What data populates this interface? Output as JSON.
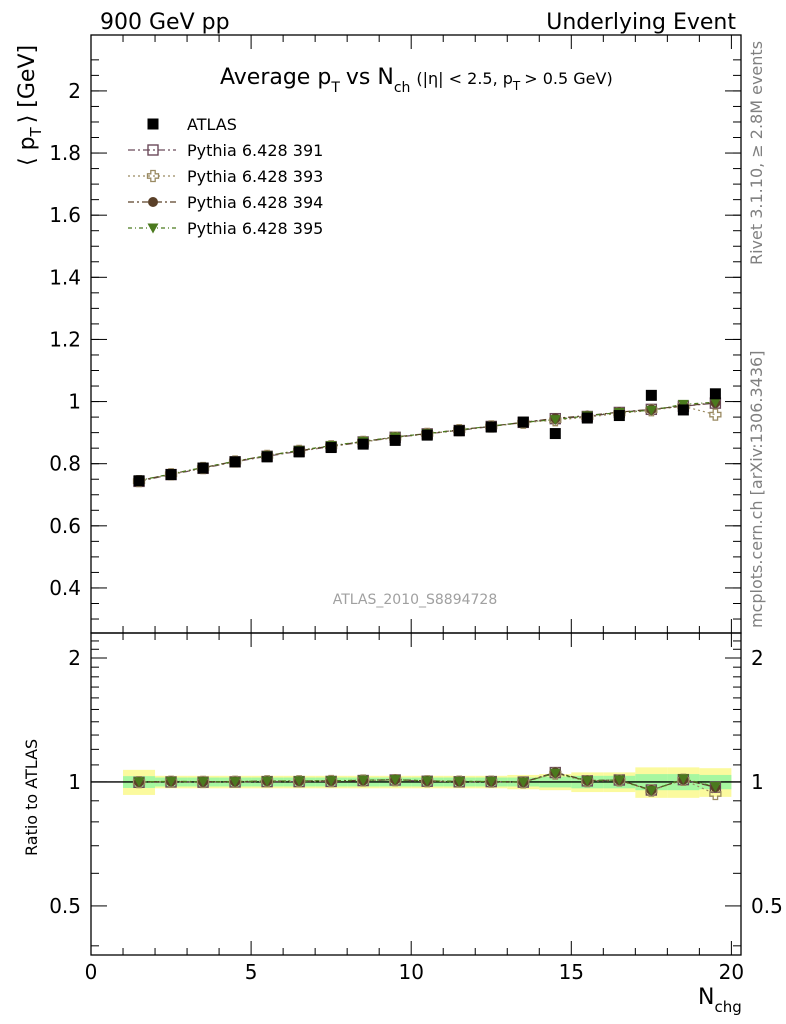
{
  "header": {
    "left": "900 GeV pp",
    "right": "Underlying Event"
  },
  "title": {
    "main": "Average p",
    "main_sub": "T",
    "vs": "vs N",
    "vs_sub": "ch",
    "cuts_a": "(|η| < 2.5, p",
    "cuts_sub": "T",
    "cuts_b": "> 0.5 GeV)"
  },
  "ylabel": {
    "open": "⟨ p",
    "sub": "T",
    "close": "⟩ [GeV]"
  },
  "ratio_ylabel": "Ratio to ATLAS",
  "xlabel": {
    "main": "N",
    "sub": "chg"
  },
  "side_text": {
    "rivet": "Rivet 3.1.10, ≥ 2.8M events",
    "mcplots": "mcplots.cern.ch [arXiv:1306.3436]"
  },
  "watermark": "ATLAS_2010_S8894728",
  "colors": {
    "atlas": "#000000",
    "p391": "#6b4a5a",
    "p393": "#9a8a62",
    "p394": "#5a4028",
    "p395": "#4b7a1e",
    "band_inner": "#a6f7a0",
    "band_outer": "#fbfa9e"
  },
  "chart_data": [
    {
      "type": "scatter",
      "panel": "main",
      "ylabel": "⟨ pT ⟩ [GeV]",
      "xlim": [
        0,
        20.3
      ],
      "ylim": [
        0.255,
        2.18
      ],
      "x_ticks": [
        "0",
        "5",
        "10",
        "15",
        "20"
      ],
      "y_ticks": [
        "0.4",
        "0.6",
        "0.8",
        "1",
        "1.2",
        "1.4",
        "1.6",
        "1.8",
        "2"
      ],
      "legend_position": "top-left",
      "x": [
        1.5,
        2.5,
        3.5,
        4.5,
        5.5,
        6.5,
        7.5,
        8.5,
        9.5,
        10.5,
        11.5,
        12.5,
        13.5,
        14.5,
        15.5,
        16.5,
        17.5,
        18.5,
        19.5
      ],
      "series": [
        {
          "name": "ATLAS",
          "values": [
            0.745,
            0.765,
            0.786,
            0.806,
            0.822,
            0.838,
            0.852,
            0.863,
            0.875,
            0.892,
            0.906,
            0.918,
            0.934,
            0.897,
            0.947,
            0.955,
            1.02,
            0.973,
            1.025
          ]
        },
        {
          "name": "Pythia 6.428 391",
          "values": [
            0.743,
            0.765,
            0.785,
            0.806,
            0.824,
            0.84,
            0.855,
            0.87,
            0.885,
            0.896,
            0.907,
            0.92,
            0.933,
            0.945,
            0.952,
            0.965,
            0.975,
            0.985,
            0.995
          ]
        },
        {
          "name": "Pythia 6.428 393",
          "values": [
            0.744,
            0.766,
            0.786,
            0.807,
            0.825,
            0.841,
            0.856,
            0.87,
            0.884,
            0.896,
            0.908,
            0.92,
            0.932,
            0.94,
            0.95,
            0.962,
            0.972,
            0.985,
            0.958
          ]
        },
        {
          "name": "Pythia 6.428 394",
          "values": [
            0.745,
            0.767,
            0.787,
            0.808,
            0.826,
            0.842,
            0.857,
            0.871,
            0.886,
            0.897,
            0.909,
            0.921,
            0.933,
            0.946,
            0.955,
            0.966,
            0.975,
            0.986,
            0.996
          ]
        },
        {
          "name": "Pythia 6.428 395",
          "values": [
            0.746,
            0.767,
            0.788,
            0.808,
            0.826,
            0.843,
            0.858,
            0.872,
            0.886,
            0.897,
            0.909,
            0.921,
            0.933,
            0.942,
            0.954,
            0.965,
            0.972,
            0.991,
            0.998
          ]
        }
      ]
    },
    {
      "type": "scatter",
      "panel": "ratio",
      "ylabel": "Ratio to ATLAS",
      "yscale": "log",
      "xlim": [
        0,
        20.3
      ],
      "ylim": [
        0.38,
        2.3
      ],
      "y_ticks": [
        "0.5",
        "1",
        "2"
      ],
      "x": [
        1.5,
        2.5,
        3.5,
        4.5,
        5.5,
        6.5,
        7.5,
        8.5,
        9.5,
        10.5,
        11.5,
        12.5,
        13.5,
        14.5,
        15.5,
        16.5,
        17.5,
        18.5,
        19.5
      ],
      "band_inner": [
        0.033,
        0.025,
        0.025,
        0.025,
        0.025,
        0.025,
        0.025,
        0.025,
        0.025,
        0.025,
        0.025,
        0.025,
        0.025,
        0.03,
        0.035,
        0.035,
        0.045,
        0.045,
        0.04
      ],
      "band_outer": [
        0.07,
        0.035,
        0.035,
        0.035,
        0.035,
        0.035,
        0.035,
        0.035,
        0.035,
        0.035,
        0.035,
        0.035,
        0.04,
        0.045,
        0.055,
        0.055,
        0.085,
        0.085,
        0.08
      ],
      "series": [
        {
          "name": "Pythia 6.428 391",
          "values": [
            0.998,
            1.0,
            0.999,
            1.0,
            1.002,
            1.002,
            1.003,
            1.008,
            1.011,
            1.004,
            1.001,
            1.002,
            0.999,
            1.054,
            1.006,
            1.011,
            0.956,
            1.013,
            0.971
          ]
        },
        {
          "name": "Pythia 6.428 393",
          "values": [
            0.999,
            1.001,
            1.0,
            1.001,
            1.004,
            1.004,
            1.005,
            1.008,
            1.01,
            1.004,
            1.002,
            1.002,
            0.998,
            1.048,
            1.004,
            1.008,
            0.953,
            1.012,
            0.935
          ]
        },
        {
          "name": "Pythia 6.428 394",
          "values": [
            1.0,
            1.003,
            1.001,
            1.002,
            1.005,
            1.005,
            1.006,
            1.009,
            1.013,
            1.006,
            1.003,
            1.003,
            0.999,
            1.055,
            1.008,
            1.011,
            0.956,
            1.013,
            0.972
          ]
        },
        {
          "name": "Pythia 6.428 395",
          "values": [
            1.001,
            1.003,
            1.002,
            1.002,
            1.005,
            1.006,
            1.007,
            1.01,
            1.013,
            1.006,
            1.003,
            1.003,
            0.999,
            1.05,
            1.007,
            1.011,
            0.953,
            1.018,
            0.974
          ]
        }
      ]
    }
  ]
}
